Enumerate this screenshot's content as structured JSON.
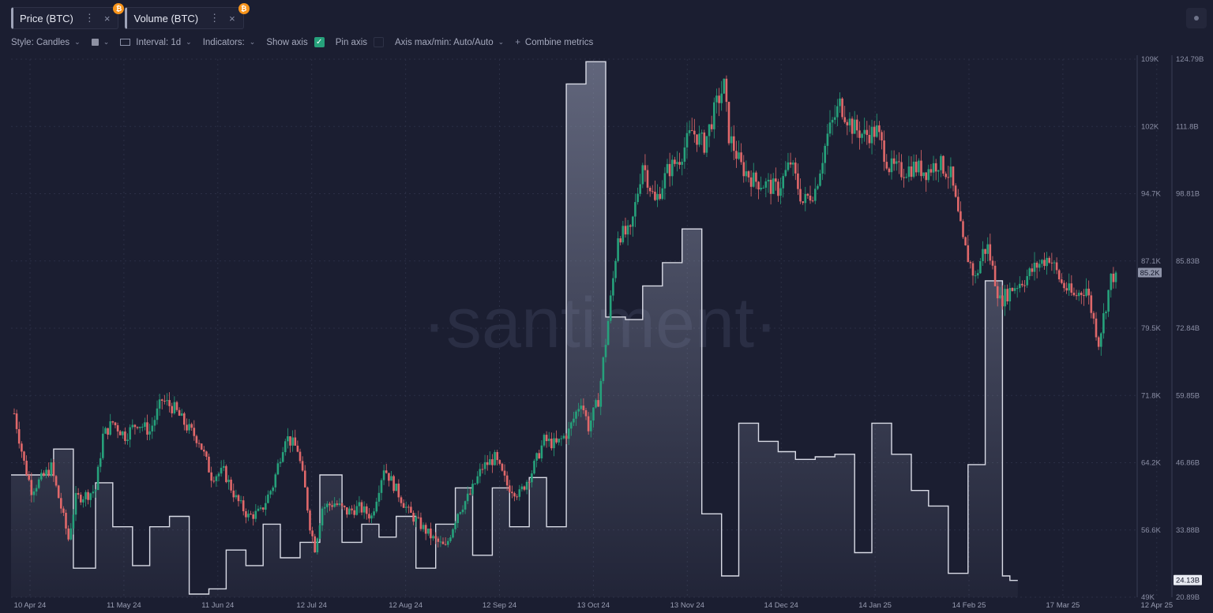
{
  "tabs": [
    {
      "label": "Price (BTC)"
    },
    {
      "label": "Volume (BTC)"
    }
  ],
  "tab_menu_glyph": "⋮",
  "tab_close_glyph": "×",
  "coin_glyph": "₿",
  "toolbar": {
    "style_label": "Style: Candles",
    "interval_label": "Interval: 1d",
    "indicators_label": "Indicators:",
    "show_axis_label": "Show axis",
    "pin_axis_label": "Pin axis",
    "axis_maxmin_label": "Axis max/min: Auto/Auto",
    "combine_label": "Combine metrics",
    "check_glyph": "✓",
    "chevron_glyph": "⌄",
    "plus_glyph": "+"
  },
  "watermark": "·santiment·",
  "colors": {
    "up": "#26a17b",
    "down": "#e0686a",
    "volume_line": "#d9dbe6",
    "background": "#1b1e31"
  },
  "chart_data": {
    "type": "candlestick+step-area",
    "x_dates": [
      "10 Apr 24",
      "11 May 24",
      "11 Jun 24",
      "12 Jul 24",
      "12 Aug 24",
      "12 Sep 24",
      "13 Oct 24",
      "13 Nov 24",
      "14 Dec 24",
      "14 Jan 25",
      "14 Feb 25",
      "17 Mar 25",
      "12 Apr 25"
    ],
    "price_axis": {
      "ticks": [
        "109K",
        "102K",
        "94.7K",
        "87.1K",
        "79.5K",
        "71.8K",
        "64.2K",
        "56.6K",
        "49K"
      ],
      "min": 49000,
      "max": 109000,
      "last_label": "85.2K",
      "last_value": 85200
    },
    "volume_axis": {
      "ticks": [
        "124.79B",
        "111.8B",
        "98.81B",
        "85.83B",
        "72.84B",
        "59.85B",
        "46.86B",
        "33.88B",
        "20.89B"
      ],
      "min": 20.89,
      "max": 124.79,
      "last_label": "24.13B",
      "last_value": 24.13
    },
    "price_close_anchors": [
      [
        0,
        69500
      ],
      [
        4,
        64000
      ],
      [
        7,
        61000
      ],
      [
        12,
        62500
      ],
      [
        15,
        63500
      ],
      [
        19,
        59000
      ],
      [
        22,
        55500
      ],
      [
        25,
        60000
      ],
      [
        30,
        60500
      ],
      [
        33,
        61000
      ],
      [
        36,
        67000
      ],
      [
        40,
        68500
      ],
      [
        45,
        67000
      ],
      [
        50,
        68500
      ],
      [
        55,
        67500
      ],
      [
        60,
        71000
      ],
      [
        65,
        70000
      ],
      [
        70,
        68000
      ],
      [
        75,
        66500
      ],
      [
        80,
        62500
      ],
      [
        85,
        63000
      ],
      [
        90,
        60000
      ],
      [
        95,
        58000
      ],
      [
        100,
        58500
      ],
      [
        105,
        61500
      ],
      [
        110,
        67000
      ],
      [
        115,
        65500
      ],
      [
        118,
        61000
      ],
      [
        120,
        57000
      ],
      [
        122,
        54500
      ],
      [
        125,
        59000
      ],
      [
        130,
        59500
      ],
      [
        135,
        58500
      ],
      [
        140,
        59000
      ],
      [
        145,
        58000
      ],
      [
        150,
        63500
      ],
      [
        155,
        61000
      ],
      [
        160,
        58500
      ],
      [
        165,
        57000
      ],
      [
        170,
        55500
      ],
      [
        175,
        54500
      ],
      [
        180,
        58500
      ],
      [
        185,
        60500
      ],
      [
        190,
        63500
      ],
      [
        195,
        64500
      ],
      [
        200,
        61500
      ],
      [
        205,
        60500
      ],
      [
        210,
        63000
      ],
      [
        215,
        66500
      ],
      [
        220,
        66000
      ],
      [
        225,
        67500
      ],
      [
        230,
        71000
      ],
      [
        233,
        68000
      ],
      [
        235,
        69500
      ],
      [
        237,
        71000
      ],
      [
        240,
        77500
      ],
      [
        243,
        84500
      ],
      [
        245,
        89500
      ],
      [
        250,
        89500
      ],
      [
        255,
        97500
      ],
      [
        260,
        93000
      ],
      [
        265,
        96500
      ],
      [
        270,
        98000
      ],
      [
        275,
        101000
      ],
      [
        280,
        99500
      ],
      [
        285,
        104000
      ],
      [
        288,
        106000
      ],
      [
        290,
        100500
      ],
      [
        295,
        97000
      ],
      [
        300,
        95500
      ],
      [
        305,
        95000
      ],
      [
        310,
        94500
      ],
      [
        315,
        97500
      ],
      [
        320,
        93000
      ],
      [
        325,
        94500
      ],
      [
        330,
        100500
      ],
      [
        335,
        104000
      ],
      [
        340,
        101500
      ],
      [
        345,
        100500
      ],
      [
        350,
        101000
      ],
      [
        355,
        97000
      ],
      [
        360,
        96500
      ],
      [
        365,
        97000
      ],
      [
        370,
        96500
      ],
      [
        375,
        97500
      ],
      [
        380,
        96000
      ],
      [
        385,
        88500
      ],
      [
        390,
        84500
      ],
      [
        393,
        87500
      ],
      [
        395,
        88000
      ],
      [
        400,
        82000
      ],
      [
        405,
        83500
      ],
      [
        410,
        84500
      ],
      [
        415,
        86000
      ],
      [
        420,
        87000
      ],
      [
        425,
        84000
      ],
      [
        430,
        82500
      ],
      [
        435,
        83500
      ],
      [
        440,
        77500
      ],
      [
        445,
        84500
      ],
      [
        447,
        85200
      ]
    ],
    "volume_steps": [
      [
        0,
        44.5
      ],
      [
        16,
        49.5
      ],
      [
        24,
        26.5
      ],
      [
        33,
        43.0
      ],
      [
        40,
        34.5
      ],
      [
        48,
        27.0
      ],
      [
        55,
        34.5
      ],
      [
        63,
        36.5
      ],
      [
        71,
        21.5
      ],
      [
        79,
        22.5
      ],
      [
        86,
        30.0
      ],
      [
        94,
        27.0
      ],
      [
        101,
        35.0
      ],
      [
        108,
        28.5
      ],
      [
        116,
        31.5
      ],
      [
        124,
        44.5
      ],
      [
        133,
        31.5
      ],
      [
        141,
        35.0
      ],
      [
        148,
        32.5
      ],
      [
        155,
        36.5
      ],
      [
        163,
        26.5
      ],
      [
        171,
        35.0
      ],
      [
        179,
        42.0
      ],
      [
        186,
        29.0
      ],
      [
        194,
        42.0
      ],
      [
        201,
        34.5
      ],
      [
        209,
        44.0
      ],
      [
        216,
        34.5
      ],
      [
        224,
        120.0
      ],
      [
        232,
        124.3
      ],
      [
        240,
        75.0
      ],
      [
        248,
        74.5
      ],
      [
        255,
        81.0
      ],
      [
        263,
        85.5
      ],
      [
        271,
        92.0
      ],
      [
        279,
        37.0
      ],
      [
        287,
        25.0
      ],
      [
        294,
        54.5
      ],
      [
        302,
        51.0
      ],
      [
        310,
        49.0
      ],
      [
        317,
        47.5
      ],
      [
        325,
        48.0
      ],
      [
        333,
        48.5
      ],
      [
        341,
        29.5
      ],
      [
        348,
        54.5
      ],
      [
        356,
        48.5
      ],
      [
        364,
        41.5
      ],
      [
        371,
        38.5
      ],
      [
        379,
        25.5
      ],
      [
        387,
        46.5
      ],
      [
        394,
        82.0
      ],
      [
        401,
        25.0
      ],
      [
        404,
        24.13
      ]
    ]
  }
}
